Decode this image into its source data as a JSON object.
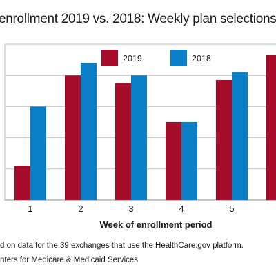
{
  "chart_data": {
    "type": "bar",
    "title": "enrollment 2019 vs. 2018: Weekly plan selections",
    "xlabel": "Week of enrollment period",
    "ylabel": "",
    "categories": [
      "1",
      "2",
      "3",
      "4",
      "5",
      ""
    ],
    "series": [
      {
        "name": "2019",
        "color": "#a50d2a",
        "values": [
          1.1,
          4.0,
          3.75,
          2.5,
          3.85,
          4.65
        ]
      },
      {
        "name": "2018",
        "color": "#0a7fc7",
        "values": [
          3.0,
          4.4,
          4.0,
          2.5,
          4.1,
          null
        ]
      }
    ],
    "ylim": [
      0,
      5
    ],
    "grid": true,
    "legend": "top"
  },
  "notes": {
    "line1": "d on data for the 39 exchanges that use the HealthCare.gov platform.",
    "line2": "nters for Medicare & Medicaid Services"
  }
}
